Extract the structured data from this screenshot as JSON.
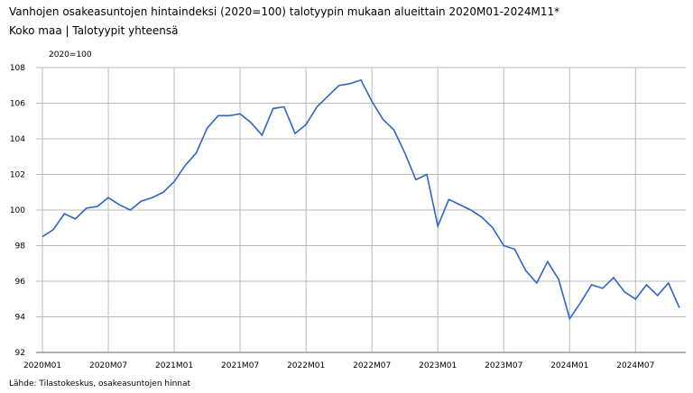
{
  "chart_data": {
    "type": "line",
    "title": "Vanhojen osakeasuntojen hintaindeksi (2020=100) talotyypin mukaan alueittain 2020M01-2024M11*",
    "subtitle": "Koko maa | Talotyypit yhteensä",
    "y_label": "2020=100",
    "source": "Lähde: Tilastokeskus, osakeasuntojen hinnat",
    "categories": [
      "2020M01",
      null,
      null,
      null,
      null,
      null,
      "2020M07",
      null,
      null,
      null,
      null,
      null,
      "2021M01",
      null,
      null,
      null,
      null,
      null,
      "2021M07",
      null,
      null,
      null,
      null,
      null,
      "2022M01",
      null,
      null,
      null,
      null,
      null,
      "2022M07",
      null,
      null,
      null,
      null,
      null,
      "2023M01",
      null,
      null,
      null,
      null,
      null,
      "2023M07",
      null,
      null,
      null,
      null,
      null,
      "2024M01",
      null,
      null,
      null,
      null,
      null,
      "2024M07",
      null,
      null,
      null,
      null
    ],
    "series": [
      {
        "name": "Koko maa",
        "color": "#2f64c8",
        "values": [
          98.5,
          98.9,
          99.8,
          99.5,
          100.1,
          100.2,
          100.7,
          100.3,
          100.0,
          100.5,
          100.7,
          101.0,
          101.6,
          102.5,
          103.2,
          104.6,
          105.3,
          105.3,
          105.4,
          104.9,
          104.2,
          105.7,
          105.8,
          104.3,
          104.8,
          105.8,
          106.4,
          107.0,
          107.1,
          107.3,
          106.1,
          105.1,
          104.5,
          103.2,
          101.7,
          102.0,
          99.1,
          100.6,
          100.3,
          100.0,
          99.6,
          99.0,
          98.0,
          97.8,
          96.6,
          95.9,
          97.1,
          96.1,
          93.9,
          94.8,
          95.8,
          95.6,
          96.2,
          95.4,
          95.0,
          95.8,
          95.2,
          95.9,
          94.5
        ]
      }
    ],
    "ylim": [
      92,
      108
    ],
    "yticks": [
      92,
      94,
      96,
      98,
      100,
      102,
      104,
      106,
      108
    ],
    "grid": true
  }
}
